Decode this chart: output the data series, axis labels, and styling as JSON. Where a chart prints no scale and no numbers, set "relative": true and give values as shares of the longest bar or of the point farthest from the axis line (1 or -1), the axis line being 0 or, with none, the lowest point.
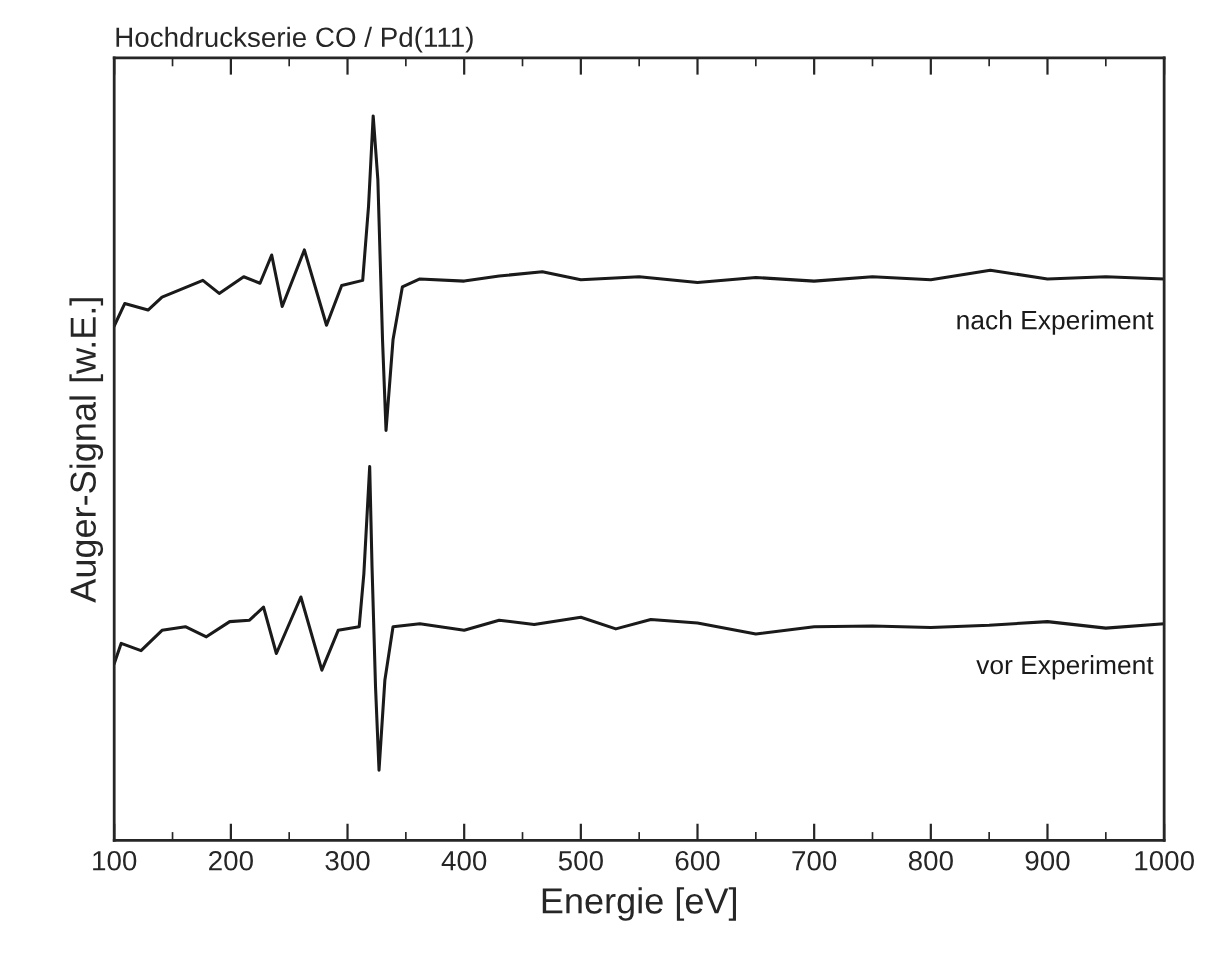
{
  "chart_data": {
    "type": "line",
    "title": "Hochdruckserie CO / Pd(111)",
    "xlabel": "Energie [eV]",
    "ylabel": "Auger-Signal [w.E.]",
    "relative": true,
    "xlim": [
      100,
      1000
    ],
    "xticks": [
      100,
      200,
      300,
      400,
      500,
      600,
      700,
      800,
      900,
      1000
    ],
    "grid": false,
    "legend": false,
    "marker": "none",
    "line_style": "solid",
    "series": [
      {
        "name": "nach Experiment",
        "color": "#1a1a1a",
        "x": [
          100,
          109,
          129,
          141,
          176,
          190,
          211,
          225,
          235,
          244,
          263,
          282,
          295,
          313,
          318,
          322,
          326,
          330,
          333,
          339,
          347,
          362,
          400,
          430,
          467,
          500,
          550,
          600,
          650,
          700,
          750,
          800,
          851,
          900,
          950,
          1000
        ],
        "values": [
          0.71,
          0.741,
          0.732,
          0.75,
          0.773,
          0.755,
          0.778,
          0.769,
          0.808,
          0.737,
          0.815,
          0.711,
          0.766,
          0.773,
          0.875,
          1.0,
          0.912,
          0.691,
          0.566,
          0.691,
          0.764,
          0.775,
          0.772,
          0.779,
          0.785,
          0.774,
          0.778,
          0.77,
          0.777,
          0.772,
          0.778,
          0.774,
          0.787,
          0.775,
          0.778,
          0.775
        ]
      },
      {
        "name": "vor Experiment",
        "color": "#1a1a1a",
        "x": [
          100,
          106,
          123,
          141,
          161,
          179,
          199,
          216,
          228,
          239,
          260,
          278,
          292,
          310,
          314,
          319,
          321,
          324,
          327,
          332,
          339,
          362,
          400,
          430,
          460,
          500,
          530,
          560,
          600,
          650,
          700,
          750,
          800,
          850,
          900,
          950,
          1000
        ],
        "values": [
          0.244,
          0.272,
          0.262,
          0.29,
          0.295,
          0.281,
          0.302,
          0.304,
          0.322,
          0.258,
          0.336,
          0.235,
          0.29,
          0.295,
          0.368,
          0.516,
          0.378,
          0.212,
          0.097,
          0.221,
          0.295,
          0.299,
          0.29,
          0.304,
          0.298,
          0.308,
          0.292,
          0.305,
          0.3,
          0.285,
          0.295,
          0.296,
          0.294,
          0.297,
          0.302,
          0.293,
          0.299
        ]
      }
    ]
  }
}
